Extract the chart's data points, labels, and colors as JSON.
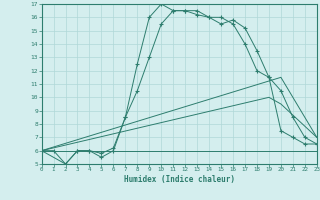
{
  "xlabel": "Humidex (Indice chaleur)",
  "ylabel": "",
  "bg_color": "#d4eeee",
  "grid_color": "#b0d8d8",
  "line_color": "#2d7d6e",
  "xlim": [
    0,
    23
  ],
  "ylim": [
    5,
    17
  ],
  "xticks": [
    0,
    1,
    2,
    3,
    4,
    5,
    6,
    7,
    8,
    9,
    10,
    11,
    12,
    13,
    14,
    15,
    16,
    17,
    18,
    19,
    20,
    21,
    22,
    23
  ],
  "yticks": [
    5,
    6,
    7,
    8,
    9,
    10,
    11,
    12,
    13,
    14,
    15,
    16,
    17
  ],
  "curve1_x": [
    0,
    1,
    2,
    3,
    4,
    5,
    6,
    7,
    8,
    9,
    10,
    11,
    12,
    13,
    14,
    15,
    16,
    17,
    18,
    19,
    20,
    21,
    22,
    23
  ],
  "curve1_y": [
    6,
    6,
    5,
    6,
    6,
    5.5,
    6,
    8.5,
    12.5,
    16,
    17,
    16.5,
    16.5,
    16.5,
    16,
    16,
    15.5,
    14,
    12,
    11.5,
    7.5,
    7,
    6.5,
    6.5
  ],
  "curve2_x": [
    0,
    2,
    3,
    4,
    5,
    6,
    7,
    8,
    9,
    10,
    11,
    12,
    13,
    14,
    15,
    16,
    17,
    18,
    19,
    20,
    21,
    22,
    23
  ],
  "curve2_y": [
    6,
    5,
    6,
    6,
    5.8,
    6.2,
    8.5,
    10.5,
    13,
    15.5,
    16.5,
    16.5,
    16.2,
    16,
    15.5,
    15.8,
    15.2,
    13.5,
    11.5,
    10.5,
    8.5,
    7,
    6.5
  ],
  "curve3_x": [
    0,
    23
  ],
  "curve3_y": [
    6,
    6
  ],
  "curve4_x": [
    0,
    20,
    23
  ],
  "curve4_y": [
    6,
    11.5,
    7
  ],
  "curve5_x": [
    0,
    19,
    20,
    23
  ],
  "curve5_y": [
    6,
    10,
    9.5,
    7
  ]
}
